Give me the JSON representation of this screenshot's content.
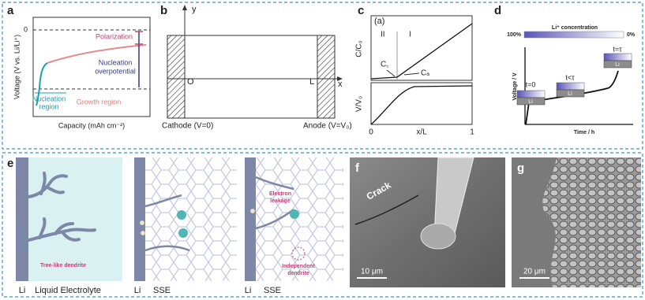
{
  "panels": {
    "a": {
      "label": "a",
      "y_axis": "Voltage (V vs. Li/Li⁺)",
      "zero": "0",
      "polarization": "Polarization",
      "overpotential": [
        "Nucleation",
        "overpotential"
      ],
      "nucleation_region": [
        "Nucleation",
        "region"
      ],
      "growth_region": "Growth region",
      "x_axis": "Capacity (mAh cm⁻²)"
    },
    "b": {
      "label": "b",
      "y": "y",
      "x": "x",
      "origin": "O",
      "length": "L",
      "cathode": "Cathode (V=0)",
      "anode": "Anode (V=V₀)"
    },
    "c": {
      "label": "c",
      "inset": "(a)",
      "upper_y": "C/C₀",
      "region_2": "II",
      "region_1": "I",
      "cc": "C꜀",
      "ca": "Cₐ",
      "lower_y": "V/V₀",
      "x_start": "0",
      "x_axis": "x/L",
      "x_end": "1"
    },
    "d": {
      "label": "d",
      "bar_title": "Li⁺ concentration",
      "bar_min": "100%",
      "bar_max": "0%",
      "y_axis": "Voltage / V",
      "x_axis": "Time / h",
      "states": [
        {
          "time": "t=0",
          "electrode": "Li"
        },
        {
          "time": "t<τ",
          "electrode": "Li"
        },
        {
          "time": "t=τ",
          "electrode": "Li"
        }
      ]
    },
    "e": {
      "label": "e",
      "liquid": {
        "dendrite": "Tree-like dendrite",
        "electrode": "Li",
        "electrolyte": "Liquid Electrolyte"
      },
      "sse_1": {
        "electrode": "Li",
        "electrolyte": "SSE"
      },
      "sse_2": {
        "leakage": [
          "Electron",
          "leakage"
        ],
        "independent": [
          "Independent",
          "dendrite"
        ],
        "electrode": "Li",
        "electrolyte": "SSE"
      }
    },
    "f": {
      "label": "f",
      "crack": "Crack",
      "scale": "10 μm"
    },
    "g": {
      "label": "g",
      "scale": "20 μm"
    }
  }
}
